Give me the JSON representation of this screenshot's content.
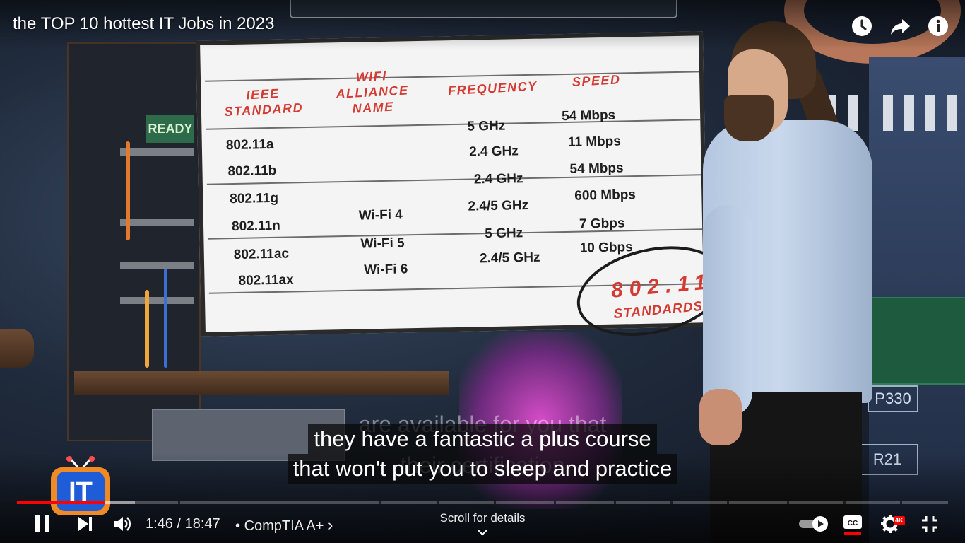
{
  "video": {
    "title": "the TOP 10 hottest IT Jobs in 2023"
  },
  "top_actions": {
    "watch_later_icon": "clock-icon",
    "share_icon": "share-arrow-icon",
    "info_icon": "info-icon"
  },
  "whiteboard": {
    "headers": {
      "standard": "IEEE\nSTANDARD",
      "wifi_name": "WIFI\nALLIANCE\nNAME",
      "frequency": "FREQUENCY",
      "speed": "SPEED"
    },
    "rows": [
      {
        "standard": "802.11a",
        "wifi_name": "",
        "frequency": "5 GHz",
        "speed": "54 Mbps"
      },
      {
        "standard": "802.11b",
        "wifi_name": "",
        "frequency": "2.4 GHz",
        "speed": "11 Mbps"
      },
      {
        "standard": "802.11g",
        "wifi_name": "",
        "frequency": "2.4 GHz",
        "speed": "54 Mbps"
      },
      {
        "standard": "802.11n",
        "wifi_name": "Wi-Fi 4",
        "frequency": "2.4/5 GHz",
        "speed": "600 Mbps"
      },
      {
        "standard": "802.11ac",
        "wifi_name": "Wi-Fi 5",
        "frequency": "5 GHz",
        "speed": "7 Gbps"
      },
      {
        "standard": "802.11ax",
        "wifi_name": "Wi-Fi 6",
        "frequency": "2.4/5 GHz",
        "speed": "10 Gbps"
      }
    ],
    "stamp_number": "802.11",
    "stamp_label": "STANDARDS"
  },
  "background_labels": {
    "ready": "READY",
    "p330": "P330",
    "r21": "R21"
  },
  "captions": {
    "ghost_line_1": "are available for you that",
    "ghost_line_2": "their certification",
    "line_1": "they have a fantastic a plus course",
    "line_2": "that won't put you to sleep and practice"
  },
  "channel_logo": {
    "text": "IT"
  },
  "player": {
    "progress_played_fraction": 0.095,
    "progress_buffered_fraction": 0.127,
    "current_time": "1:46",
    "duration": "18:47",
    "time_separator": " / ",
    "chapter_separator": "•",
    "chapter_title": "CompTIA A+",
    "chapter_chevron": "›",
    "scroll_hint": "Scroll for details",
    "quality_badge": "4K",
    "colors": {
      "progress_played": "#ff0000",
      "cc_underline": "#ff0000"
    },
    "controls": {
      "pause_icon": "pause-icon",
      "next_icon": "next-icon",
      "volume_icon": "volume-icon",
      "autoplay_icon": "autoplay-toggle-icon",
      "cc_icon": "subtitles-icon",
      "settings_icon": "gear-icon",
      "exit_fullscreen_icon": "exit-fullscreen-icon"
    }
  }
}
